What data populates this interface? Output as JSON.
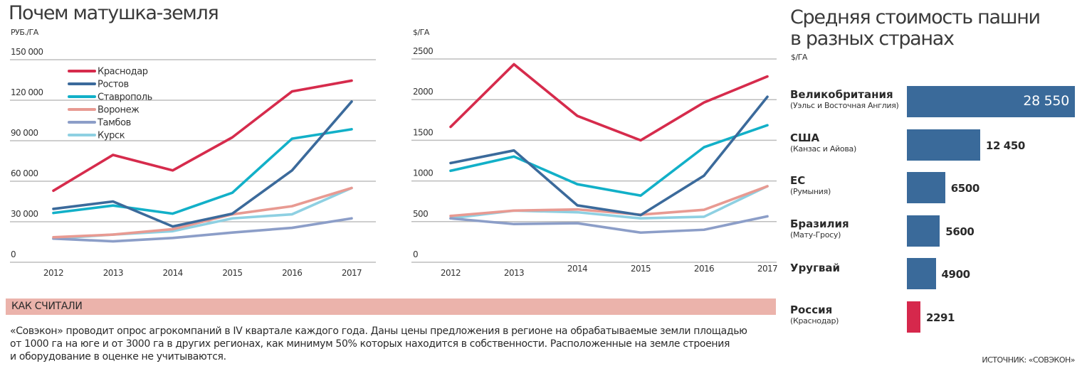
{
  "how_counted": {
    "heading": "КАК СЧИТАЛИ",
    "lines": [
      "«Совэкон» проводит опрос агрокомпаний в IV квартале каждого года. Даны цены предложения в регионе на обрабатываемые земли площадью",
      "от 1000 га на юге и от 3000 га в других регионах, как минимум 50% которых находится в собственности. Расположенные на земле строения",
      "и оборудование в оценке не учитываются."
    ]
  },
  "source": "ИСТОЧНИК: «СОВЭКОН»",
  "chart_data": [
    {
      "type": "line",
      "title": "Почем матушка-земля",
      "ylabel": "РУБ./ГА",
      "xlabel": "",
      "x": [
        "2012",
        "2013",
        "2014",
        "2015",
        "2016",
        "2017"
      ],
      "ylim": [
        0,
        150000
      ],
      "yticks": [
        0,
        30000,
        60000,
        90000,
        120000,
        150000
      ],
      "ytick_labels": [
        "0",
        "30 000",
        "60 000",
        "90 000",
        "120 000",
        "150 000"
      ],
      "grid": true,
      "legend": "top-left",
      "series": [
        {
          "name": "Краснодар",
          "color": "#d62b4c",
          "values": [
            53000,
            79500,
            68000,
            92500,
            126500,
            134500
          ]
        },
        {
          "name": "Ростов",
          "color": "#3b6a9b",
          "values": [
            39500,
            45000,
            26500,
            36000,
            68000,
            119000
          ]
        },
        {
          "name": "Ставрополь",
          "color": "#12b0c8",
          "values": [
            36500,
            42000,
            36000,
            51500,
            91500,
            98500
          ]
        },
        {
          "name": "Воронеж",
          "color": "#e89a92",
          "values": [
            18500,
            20500,
            24500,
            35500,
            41500,
            55000
          ]
        },
        {
          "name": "Тамбов",
          "color": "#8c9ec8",
          "values": [
            17500,
            15500,
            18000,
            22000,
            25500,
            32500
          ]
        },
        {
          "name": "Курск",
          "color": "#8ed0e2",
          "values": [
            17500,
            20500,
            23000,
            32500,
            35500,
            55000
          ]
        }
      ]
    },
    {
      "type": "line",
      "title": "",
      "ylabel": "$/ГА",
      "xlabel": "",
      "x": [
        "2012",
        "2013",
        "2014",
        "2015",
        "2016",
        "2017"
      ],
      "ylim": [
        0,
        2500
      ],
      "yticks": [
        0,
        500,
        1000,
        1500,
        2000,
        2500
      ],
      "ytick_labels": [
        "0",
        "500",
        "1000",
        "1500",
        "2000",
        "2500"
      ],
      "grid": true,
      "legend": "none",
      "series": [
        {
          "name": "Краснодар",
          "color": "#d62b4c",
          "values": [
            1665,
            2435,
            1800,
            1500,
            1965,
            2285
          ]
        },
        {
          "name": "Ростов",
          "color": "#3b6a9b",
          "values": [
            1220,
            1375,
            700,
            580,
            1065,
            2035
          ]
        },
        {
          "name": "Ставрополь",
          "color": "#12b0c8",
          "values": [
            1125,
            1300,
            960,
            820,
            1415,
            1685
          ]
        },
        {
          "name": "Воронеж",
          "color": "#e89a92",
          "values": [
            570,
            635,
            650,
            585,
            645,
            935
          ]
        },
        {
          "name": "Тамбов",
          "color": "#8c9ec8",
          "values": [
            540,
            470,
            480,
            365,
            400,
            565
          ]
        },
        {
          "name": "Курск",
          "color": "#8ed0e2",
          "values": [
            540,
            635,
            615,
            540,
            560,
            935
          ]
        }
      ]
    },
    {
      "type": "bar",
      "orientation": "horizontal",
      "title": "Средняя стоимость пашни в разных странах",
      "title_lines": [
        "Средняя стоимость пашни",
        "в разных странах"
      ],
      "xlabel": "",
      "ylabel": "$/ГА",
      "xlim": [
        0,
        28550
      ],
      "grid": false,
      "categories": [
        "Великобритания",
        "США",
        "ЕС",
        "Бразилия",
        "Уругвай",
        "Россия"
      ],
      "subtitles": [
        "(Уэльс и Восточная Англия)",
        "(Канзас и Айова)",
        "(Румыния)",
        "(Мату-Гросу)",
        "",
        "(Краснодар)"
      ],
      "values": [
        28550,
        12450,
        6500,
        5600,
        4900,
        2291
      ],
      "value_labels": [
        "28 550",
        "12 450",
        "6500",
        "5600",
        "4900",
        "2291"
      ],
      "colors": [
        "#3a6a9a",
        "#3a6a9a",
        "#3a6a9a",
        "#3a6a9a",
        "#3a6a9a",
        "#d6284c"
      ]
    }
  ]
}
